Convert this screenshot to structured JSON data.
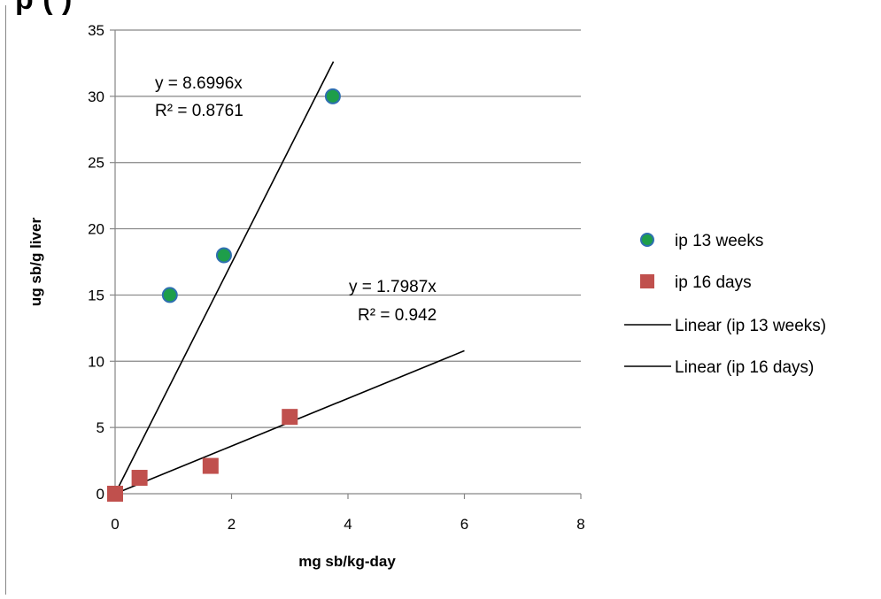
{
  "chart_data": {
    "type": "scatter",
    "title": "",
    "title_fragment": "p                                    (  )",
    "xlabel": "mg sb/kg-day",
    "ylabel": "ug sb/g liver",
    "xlim": [
      0,
      8
    ],
    "ylim": [
      0,
      35
    ],
    "xticks": [
      0,
      2,
      4,
      6,
      8
    ],
    "yticks": [
      0,
      5,
      10,
      15,
      20,
      25,
      30,
      35
    ],
    "grid": "horizontal",
    "legend_position": "right",
    "series": [
      {
        "name": "ip 13 weeks",
        "marker": "circle",
        "color": "#1e9e4a",
        "edge_color": "#2e6fb0",
        "x": [
          0,
          0.94,
          1.87,
          3.74
        ],
        "y": [
          0,
          15,
          18,
          30
        ]
      },
      {
        "name": "ip 16 days",
        "marker": "square",
        "color": "#c0504d",
        "x": [
          0,
          0.42,
          1.64,
          3.0
        ],
        "y": [
          0,
          1.2,
          2.1,
          5.8
        ]
      }
    ],
    "trendlines": [
      {
        "name": "Linear (ip 13 weeks)",
        "slope": 8.6996,
        "x_range": [
          0,
          3.75
        ],
        "equation": "y = 8.6996x",
        "r2": "R² = 0.8761",
        "color": "#000000"
      },
      {
        "name": "Linear (ip 16 days)",
        "slope": 1.7987,
        "x_range": [
          0,
          6.0
        ],
        "equation": "y = 1.7987x",
        "r2": "R² = 0.942",
        "color": "#000000"
      }
    ]
  }
}
